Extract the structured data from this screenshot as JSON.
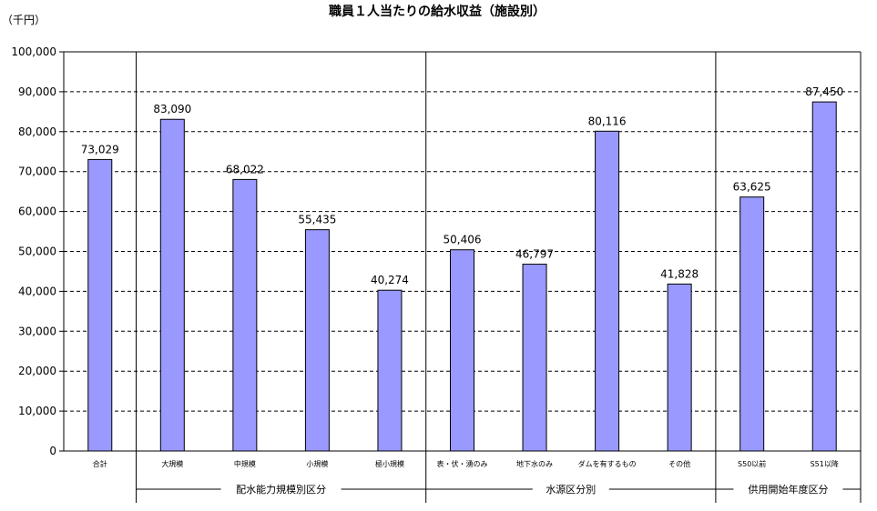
{
  "chart_data": {
    "type": "bar",
    "title": "職員１人当たりの給水収益（施設別）",
    "unit_label": "（千円）",
    "ylim": [
      0,
      100000
    ],
    "y_ticks": [
      "0",
      "10,000",
      "20,000",
      "30,000",
      "40,000",
      "50,000",
      "60,000",
      "70,000",
      "80,000",
      "90,000",
      "100,000"
    ],
    "grid": "horizontal dashed",
    "bar_color": "#9999ff",
    "categories": [
      "合計",
      "大規模",
      "中規模",
      "小規模",
      "極小規模",
      "表・伏・湧のみ",
      "地下水のみ",
      "ダムを有するもの",
      "その他",
      "S50以前",
      "S51以降"
    ],
    "values": [
      73029,
      83090,
      68022,
      55435,
      40274,
      50406,
      46797,
      80116,
      41828,
      63625,
      87450
    ],
    "value_labels": [
      "73,029",
      "83,090",
      "68,022",
      "55,435",
      "40,274",
      "50,406",
      "46,797",
      "80,116",
      "41,828",
      "63,625",
      "87,450"
    ],
    "groups": [
      {
        "label": "配水能力規模別区分",
        "first": 1,
        "last": 4
      },
      {
        "label": "水源区分別",
        "first": 5,
        "last": 8
      },
      {
        "label": "供用開始年度区分",
        "first": 9,
        "last": 10
      }
    ]
  }
}
